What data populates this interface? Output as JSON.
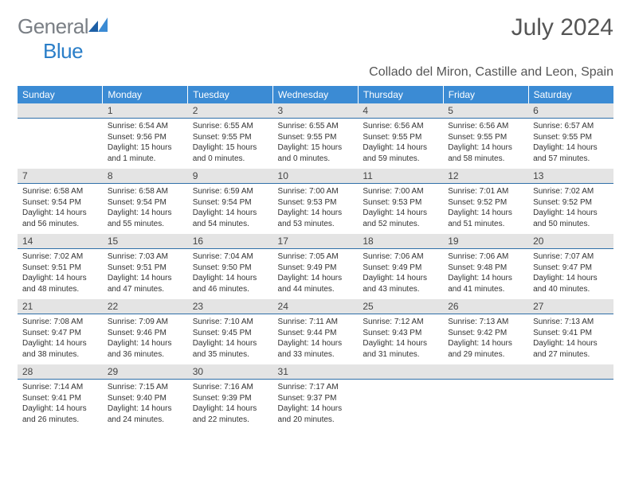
{
  "logo": {
    "text_a": "General",
    "text_b": "Blue"
  },
  "title": "July 2024",
  "subtitle": "Collado del Miron, Castille and Leon, Spain",
  "colors": {
    "header_bg": "#3b8bd4",
    "header_fg": "#ffffff",
    "numrow_bg": "#e4e4e4",
    "numrow_border": "#2f6fa8",
    "body_bg": "#ffffff",
    "text": "#333333"
  },
  "day_headers": [
    "Sunday",
    "Monday",
    "Tuesday",
    "Wednesday",
    "Thursday",
    "Friday",
    "Saturday"
  ],
  "weeks": [
    {
      "nums": [
        "",
        "1",
        "2",
        "3",
        "4",
        "5",
        "6"
      ],
      "cells": [
        {
          "lines": []
        },
        {
          "lines": [
            "Sunrise: 6:54 AM",
            "Sunset: 9:56 PM",
            "Daylight: 15 hours",
            "and 1 minute."
          ]
        },
        {
          "lines": [
            "Sunrise: 6:55 AM",
            "Sunset: 9:55 PM",
            "Daylight: 15 hours",
            "and 0 minutes."
          ]
        },
        {
          "lines": [
            "Sunrise: 6:55 AM",
            "Sunset: 9:55 PM",
            "Daylight: 15 hours",
            "and 0 minutes."
          ]
        },
        {
          "lines": [
            "Sunrise: 6:56 AM",
            "Sunset: 9:55 PM",
            "Daylight: 14 hours",
            "and 59 minutes."
          ]
        },
        {
          "lines": [
            "Sunrise: 6:56 AM",
            "Sunset: 9:55 PM",
            "Daylight: 14 hours",
            "and 58 minutes."
          ]
        },
        {
          "lines": [
            "Sunrise: 6:57 AM",
            "Sunset: 9:55 PM",
            "Daylight: 14 hours",
            "and 57 minutes."
          ]
        }
      ]
    },
    {
      "nums": [
        "7",
        "8",
        "9",
        "10",
        "11",
        "12",
        "13"
      ],
      "cells": [
        {
          "lines": [
            "Sunrise: 6:58 AM",
            "Sunset: 9:54 PM",
            "Daylight: 14 hours",
            "and 56 minutes."
          ]
        },
        {
          "lines": [
            "Sunrise: 6:58 AM",
            "Sunset: 9:54 PM",
            "Daylight: 14 hours",
            "and 55 minutes."
          ]
        },
        {
          "lines": [
            "Sunrise: 6:59 AM",
            "Sunset: 9:54 PM",
            "Daylight: 14 hours",
            "and 54 minutes."
          ]
        },
        {
          "lines": [
            "Sunrise: 7:00 AM",
            "Sunset: 9:53 PM",
            "Daylight: 14 hours",
            "and 53 minutes."
          ]
        },
        {
          "lines": [
            "Sunrise: 7:00 AM",
            "Sunset: 9:53 PM",
            "Daylight: 14 hours",
            "and 52 minutes."
          ]
        },
        {
          "lines": [
            "Sunrise: 7:01 AM",
            "Sunset: 9:52 PM",
            "Daylight: 14 hours",
            "and 51 minutes."
          ]
        },
        {
          "lines": [
            "Sunrise: 7:02 AM",
            "Sunset: 9:52 PM",
            "Daylight: 14 hours",
            "and 50 minutes."
          ]
        }
      ]
    },
    {
      "nums": [
        "14",
        "15",
        "16",
        "17",
        "18",
        "19",
        "20"
      ],
      "cells": [
        {
          "lines": [
            "Sunrise: 7:02 AM",
            "Sunset: 9:51 PM",
            "Daylight: 14 hours",
            "and 48 minutes."
          ]
        },
        {
          "lines": [
            "Sunrise: 7:03 AM",
            "Sunset: 9:51 PM",
            "Daylight: 14 hours",
            "and 47 minutes."
          ]
        },
        {
          "lines": [
            "Sunrise: 7:04 AM",
            "Sunset: 9:50 PM",
            "Daylight: 14 hours",
            "and 46 minutes."
          ]
        },
        {
          "lines": [
            "Sunrise: 7:05 AM",
            "Sunset: 9:49 PM",
            "Daylight: 14 hours",
            "and 44 minutes."
          ]
        },
        {
          "lines": [
            "Sunrise: 7:06 AM",
            "Sunset: 9:49 PM",
            "Daylight: 14 hours",
            "and 43 minutes."
          ]
        },
        {
          "lines": [
            "Sunrise: 7:06 AM",
            "Sunset: 9:48 PM",
            "Daylight: 14 hours",
            "and 41 minutes."
          ]
        },
        {
          "lines": [
            "Sunrise: 7:07 AM",
            "Sunset: 9:47 PM",
            "Daylight: 14 hours",
            "and 40 minutes."
          ]
        }
      ]
    },
    {
      "nums": [
        "21",
        "22",
        "23",
        "24",
        "25",
        "26",
        "27"
      ],
      "cells": [
        {
          "lines": [
            "Sunrise: 7:08 AM",
            "Sunset: 9:47 PM",
            "Daylight: 14 hours",
            "and 38 minutes."
          ]
        },
        {
          "lines": [
            "Sunrise: 7:09 AM",
            "Sunset: 9:46 PM",
            "Daylight: 14 hours",
            "and 36 minutes."
          ]
        },
        {
          "lines": [
            "Sunrise: 7:10 AM",
            "Sunset: 9:45 PM",
            "Daylight: 14 hours",
            "and 35 minutes."
          ]
        },
        {
          "lines": [
            "Sunrise: 7:11 AM",
            "Sunset: 9:44 PM",
            "Daylight: 14 hours",
            "and 33 minutes."
          ]
        },
        {
          "lines": [
            "Sunrise: 7:12 AM",
            "Sunset: 9:43 PM",
            "Daylight: 14 hours",
            "and 31 minutes."
          ]
        },
        {
          "lines": [
            "Sunrise: 7:13 AM",
            "Sunset: 9:42 PM",
            "Daylight: 14 hours",
            "and 29 minutes."
          ]
        },
        {
          "lines": [
            "Sunrise: 7:13 AM",
            "Sunset: 9:41 PM",
            "Daylight: 14 hours",
            "and 27 minutes."
          ]
        }
      ]
    },
    {
      "nums": [
        "28",
        "29",
        "30",
        "31",
        "",
        "",
        ""
      ],
      "cells": [
        {
          "lines": [
            "Sunrise: 7:14 AM",
            "Sunset: 9:41 PM",
            "Daylight: 14 hours",
            "and 26 minutes."
          ]
        },
        {
          "lines": [
            "Sunrise: 7:15 AM",
            "Sunset: 9:40 PM",
            "Daylight: 14 hours",
            "and 24 minutes."
          ]
        },
        {
          "lines": [
            "Sunrise: 7:16 AM",
            "Sunset: 9:39 PM",
            "Daylight: 14 hours",
            "and 22 minutes."
          ]
        },
        {
          "lines": [
            "Sunrise: 7:17 AM",
            "Sunset: 9:37 PM",
            "Daylight: 14 hours",
            "and 20 minutes."
          ]
        },
        {
          "lines": []
        },
        {
          "lines": []
        },
        {
          "lines": []
        }
      ]
    }
  ]
}
